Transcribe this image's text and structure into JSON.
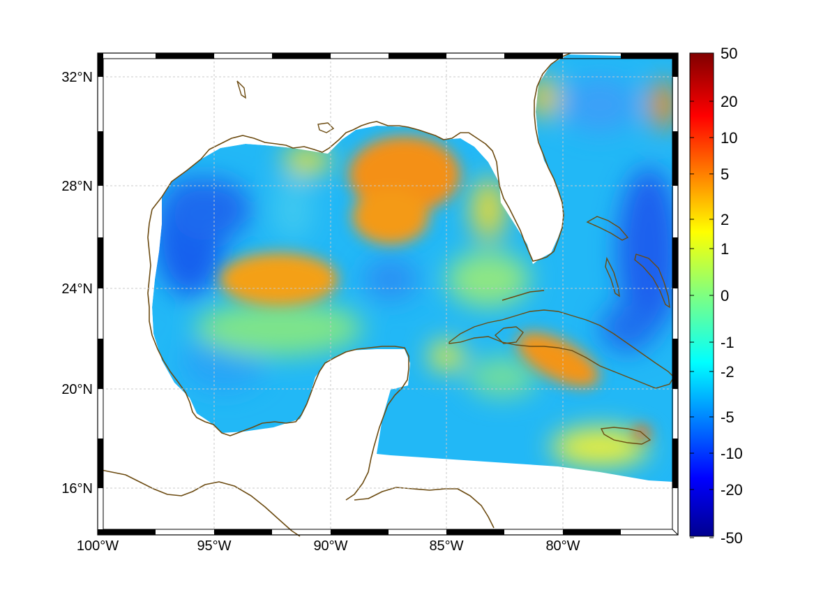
{
  "map": {
    "lon_labels": [
      "100°W",
      "95°W",
      "90°W",
      "85°W",
      "80°W"
    ],
    "lat_labels": [
      "32°N",
      "28°N",
      "24°N",
      "20°N",
      "16°N"
    ],
    "colorbar": {
      "labels": [
        "50",
        "20",
        "10",
        "5",
        "2",
        "1",
        "0",
        "-1",
        "-2",
        "-5",
        "-10",
        "-20",
        "-50"
      ],
      "colormap": "jet",
      "scale": "nonlinear"
    },
    "colors": {
      "coastline": "#6b4a10",
      "grid": "#c8c8c8",
      "frame": "#000000"
    }
  }
}
